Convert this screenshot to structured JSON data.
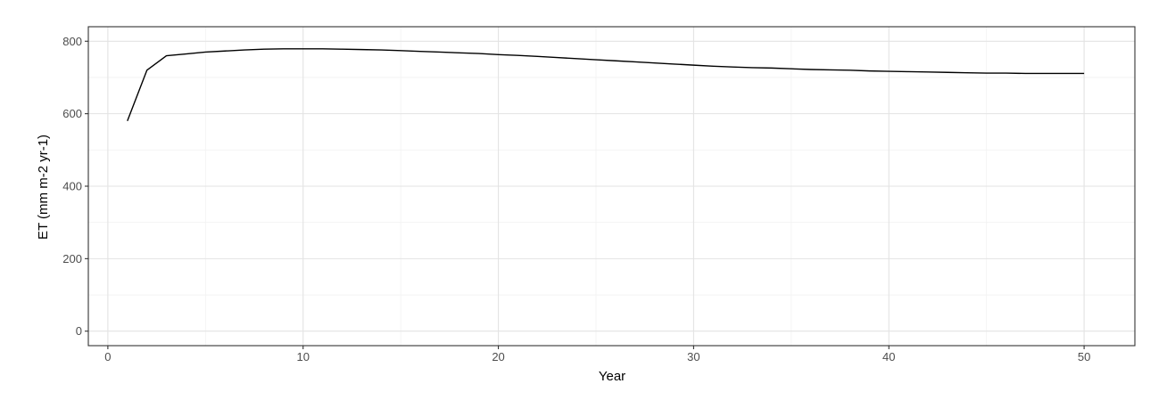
{
  "chart_data": {
    "type": "line",
    "title": "",
    "xlabel": "Year",
    "ylabel": "ET (mm m-2 yr-1)",
    "xlim": [
      -1,
      52.6
    ],
    "ylim": [
      -40,
      840
    ],
    "x_ticks": [
      0,
      10,
      20,
      30,
      40,
      50
    ],
    "y_ticks": [
      0,
      200,
      400,
      600,
      800
    ],
    "x_tick_labels": [
      "0",
      "10",
      "20",
      "30",
      "40",
      "50"
    ],
    "y_tick_labels": [
      "0",
      "200",
      "400",
      "600",
      "800"
    ],
    "x_minor_ticks": [
      5,
      15,
      25,
      35,
      45
    ],
    "y_minor_ticks": [
      100,
      300,
      500,
      700
    ],
    "grid": true,
    "legend": "none",
    "series": [
      {
        "color": "#000000",
        "x": [
          1,
          2,
          3,
          4,
          5,
          6,
          7,
          8,
          9,
          10,
          11,
          12,
          13,
          14,
          15,
          16,
          17,
          18,
          19,
          20,
          21,
          22,
          23,
          24,
          25,
          26,
          27,
          28,
          29,
          30,
          31,
          32,
          33,
          34,
          35,
          36,
          37,
          38,
          39,
          40,
          41,
          42,
          43,
          44,
          45,
          46,
          47,
          48,
          49,
          50
        ],
        "y": [
          580,
          720,
          760,
          765,
          770,
          773,
          776,
          778,
          779,
          779,
          779,
          778,
          777,
          776,
          774,
          772,
          770,
          768,
          766,
          763,
          761,
          758,
          755,
          752,
          749,
          746,
          743,
          740,
          737,
          734,
          731,
          729,
          727,
          726,
          724,
          722,
          721,
          720,
          718,
          717,
          716,
          715,
          714,
          713,
          712,
          712,
          711,
          711,
          711,
          711
        ]
      }
    ]
  }
}
